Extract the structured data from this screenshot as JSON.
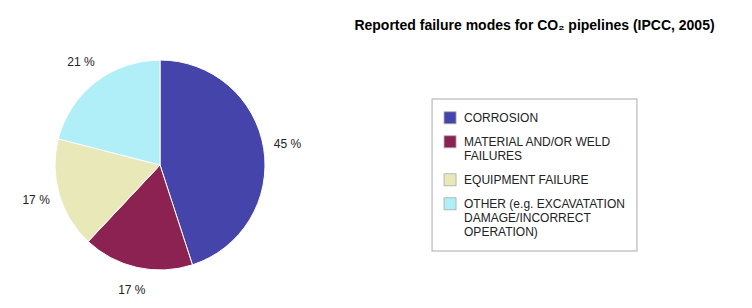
{
  "chart_data": {
    "type": "pie",
    "title": "Reported failure modes for CO₂ pipelines (IPCC, 2005)",
    "categories": [
      "CORROSION",
      "MATERIAL AND/OR WELD\nFAILURES",
      "EQUIPMENT FAILURE",
      "OTHER (e.g. EXCAVATATION\nDAMAGE/INCORRECT\nOPERATION)"
    ],
    "values": [
      45,
      17,
      17,
      21
    ],
    "value_labels": [
      "45 %",
      "17 %",
      "17 %",
      "21 %"
    ],
    "colors": [
      "#4444aa",
      "#8b2252",
      "#e8e8b8",
      "#b0eef8"
    ],
    "data_labels": true,
    "legend": "right"
  }
}
